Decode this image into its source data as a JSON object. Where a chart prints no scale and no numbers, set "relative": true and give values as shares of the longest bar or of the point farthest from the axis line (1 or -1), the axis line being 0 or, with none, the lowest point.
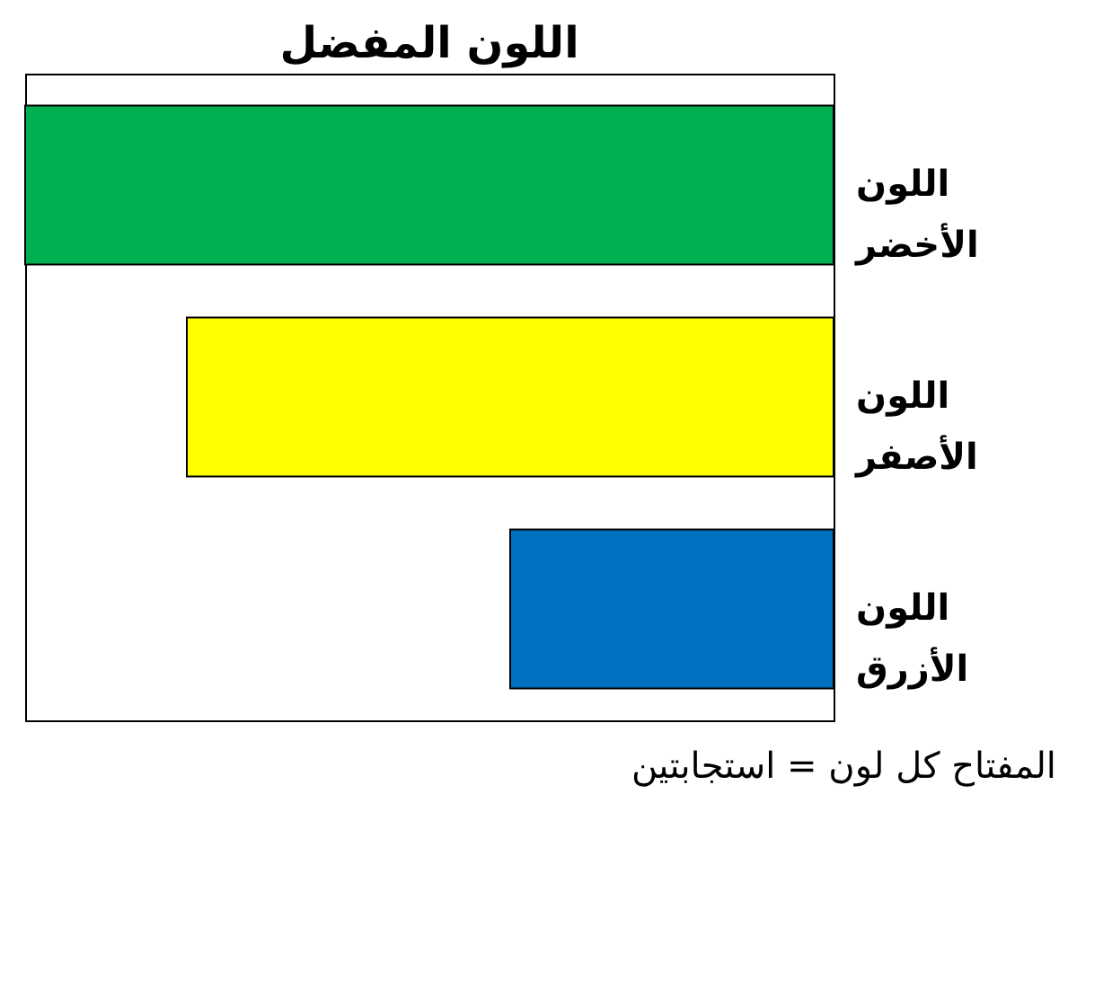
{
  "chart_data": {
    "type": "bar",
    "orientation": "horizontal",
    "relative": true,
    "title": "اللون المفضل",
    "categories": [
      "اللون الأخضر",
      "اللون الأصفر",
      "اللون الأزرق"
    ],
    "values": [
      1,
      0.8,
      0.4
    ],
    "colors": [
      "#00b050",
      "#ffff00",
      "#0070c0"
    ],
    "annotations": [
      "المفتاح كل لون = استجابتين"
    ]
  }
}
